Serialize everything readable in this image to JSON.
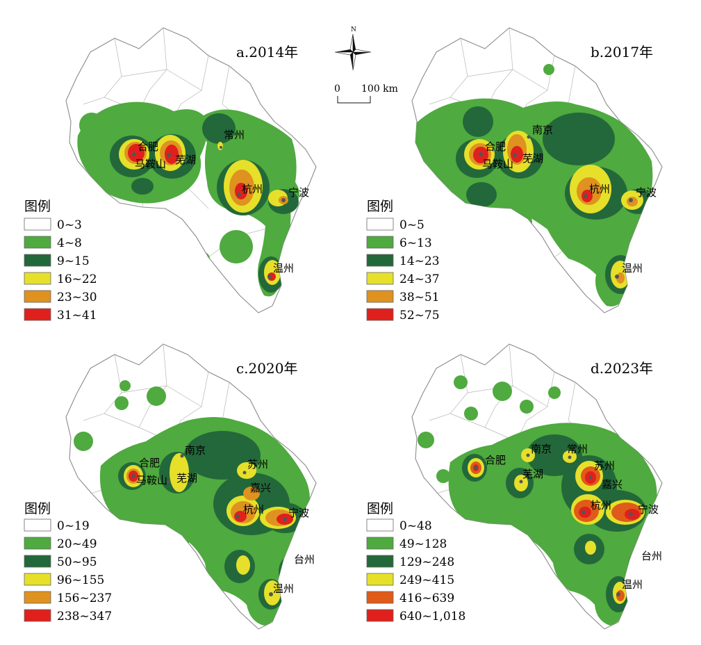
{
  "compass": {
    "north_label": "N",
    "icon": "north-arrow-icon"
  },
  "scale_bar": {
    "start_label": "0",
    "end_label": "100 km"
  },
  "panels": [
    {
      "title": "a.2014年",
      "legend_title": "图例",
      "classes": [
        "0~3",
        "4~8",
        "9~15",
        "16~22",
        "23~30",
        "31~41"
      ],
      "cities": [
        "合肥",
        "马鞍山",
        "芜湖",
        "常州",
        "杭州",
        "宁波",
        "温州"
      ]
    },
    {
      "title": "b.2017年",
      "legend_title": "图例",
      "classes": [
        "0~5",
        "6~13",
        "14~23",
        "24~37",
        "38~51",
        "52~75"
      ],
      "cities": [
        "南京",
        "合肥",
        "马鞍山",
        "芜湖",
        "杭州",
        "宁波",
        "温州"
      ]
    },
    {
      "title": "c.2020年",
      "legend_title": "图例",
      "classes": [
        "0~19",
        "20~49",
        "50~95",
        "96~155",
        "156~237",
        "238~347"
      ],
      "cities": [
        "南京",
        "苏州",
        "合肥",
        "马鞍山",
        "芜湖",
        "嘉兴",
        "杭州",
        "宁波",
        "台州",
        "温州"
      ]
    },
    {
      "title": "d.2023年",
      "legend_title": "图例",
      "classes": [
        "0~48",
        "49~128",
        "129~248",
        "249~415",
        "416~639",
        "640~1,018"
      ],
      "cities": [
        "南京",
        "常州",
        "合肥",
        "苏州",
        "芜湖",
        "嘉兴",
        "杭州",
        "宁波",
        "台州",
        "温州"
      ]
    }
  ],
  "class_colors": [
    "#ffffff",
    "#4faa3f",
    "#23683a",
    "#e6e02a",
    "#df9220",
    "#e0201d"
  ],
  "class_colors_d": [
    "#ffffff",
    "#4faa3f",
    "#23683a",
    "#e6e02a",
    "#e05a1a",
    "#e0201d"
  ]
}
